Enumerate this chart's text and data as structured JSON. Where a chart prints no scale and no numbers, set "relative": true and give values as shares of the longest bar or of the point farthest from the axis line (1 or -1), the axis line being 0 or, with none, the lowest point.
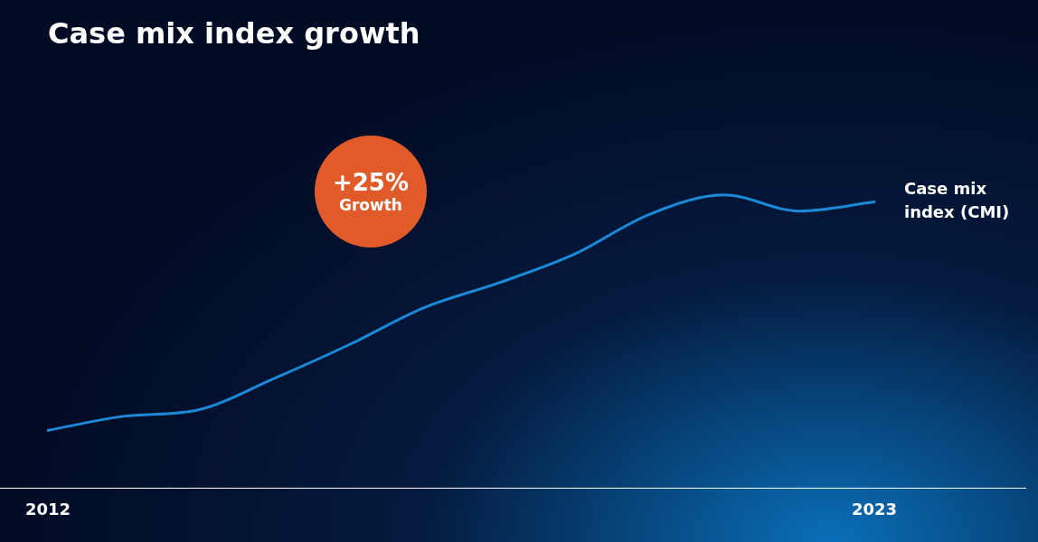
{
  "chart_data": {
    "type": "line",
    "title": "Case mix index growth",
    "relative": true,
    "categories": [
      "2012",
      null,
      null,
      null,
      null,
      null,
      null,
      null,
      null,
      null,
      null,
      "2023"
    ],
    "series": [
      {
        "name": "Case mix index (CMI)",
        "color": "#1a8ad8",
        "values": [
          0.197,
          0.245,
          0.267,
          0.373,
          0.488,
          0.615,
          0.7,
          0.797,
          0.933,
          1,
          0.945,
          0.976
        ]
      }
    ],
    "annotations": [
      "+25% Growth"
    ],
    "grid": false,
    "legend": false,
    "marker": "none",
    "line_style": "solid"
  }
}
